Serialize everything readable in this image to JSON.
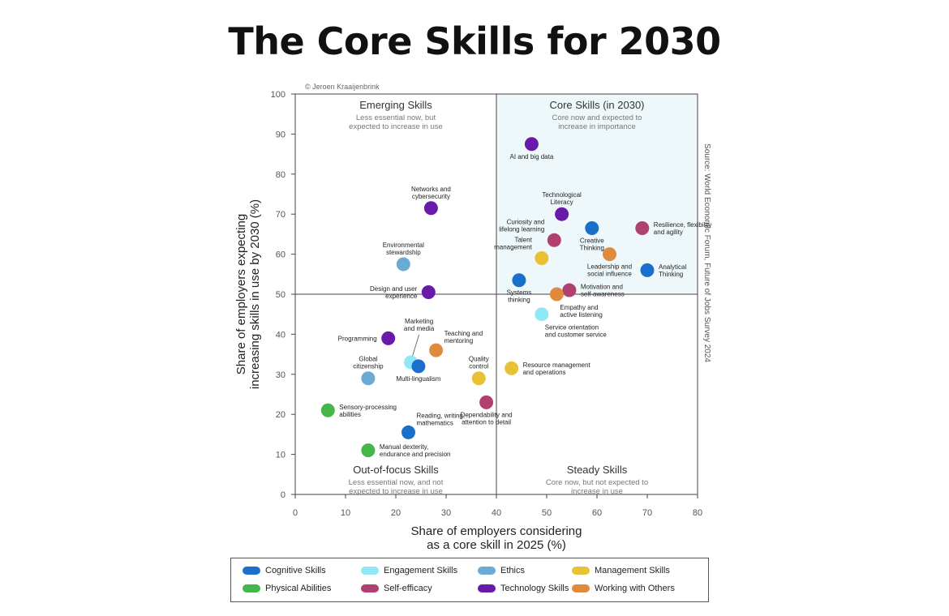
{
  "title": "The Core Skills for 2030",
  "credit": "© Jeroen Kraaijenbrink",
  "source": "Source: World Economic Forum, Future of Jobs Survey 2024",
  "chart_data": {
    "type": "scatter",
    "xlabel": [
      "Share of employers considering",
      "as a core skill in 2025 (%)"
    ],
    "ylabel": [
      "Share of employers expecting",
      "increasing skills in use by 2030 (%)"
    ],
    "xlim": [
      0,
      80
    ],
    "ylim": [
      0,
      100
    ],
    "xticks": [
      "0",
      "10",
      "20",
      "30",
      "40",
      "50",
      "60",
      "70",
      "80"
    ],
    "yticks": [
      "0",
      "10",
      "20",
      "30",
      "40",
      "50",
      "60",
      "70",
      "80",
      "90",
      "100"
    ],
    "divider": {
      "x": 40,
      "y": 50
    },
    "quadrants": [
      {
        "title": "Emerging Skills",
        "subtitle": [
          "Less essential now, but",
          "expected to increase in use"
        ]
      },
      {
        "title": "Core Skills (in 2030)",
        "subtitle": [
          "Core now and expected to",
          "increase in importance"
        ]
      },
      {
        "title": "Out-of-focus Skills",
        "subtitle": [
          "Less essential now, and not",
          "expected to increase in use"
        ]
      },
      {
        "title": "Steady Skills",
        "subtitle": [
          "Core now, but not expected to",
          "increase in use"
        ]
      }
    ],
    "categories": [
      {
        "name": "Cognitive Skills",
        "color": "#1a6fcc"
      },
      {
        "name": "Engagement Skills",
        "color": "#8fe8f5"
      },
      {
        "name": "Ethics",
        "color": "#6aaad4"
      },
      {
        "name": "Management Skills",
        "color": "#e8c234"
      },
      {
        "name": "Physical Abilities",
        "color": "#45b649"
      },
      {
        "name": "Self-efficacy",
        "color": "#b04070"
      },
      {
        "name": "Technology Skills",
        "color": "#6a1aa8"
      },
      {
        "name": "Working with Others",
        "color": "#e08a3c"
      }
    ],
    "points": [
      {
        "label": [
          "AI and big data"
        ],
        "category": "Technology Skills",
        "x": 47,
        "y": 87.5,
        "pos": "below"
      },
      {
        "label": [
          "Networks and",
          "cybersecurity"
        ],
        "category": "Technology Skills",
        "x": 27,
        "y": 71.5,
        "pos": "above"
      },
      {
        "label": [
          "Technological",
          "Literacy"
        ],
        "category": "Technology Skills",
        "x": 53,
        "y": 70,
        "pos": "above"
      },
      {
        "label": [
          "Curiosity and",
          "lifelong learning"
        ],
        "category": "Self-efficacy",
        "x": 51.5,
        "y": 63.5,
        "pos": "upleft"
      },
      {
        "label": [
          "Creative",
          "Thinking"
        ],
        "category": "Cognitive Skills",
        "x": 59,
        "y": 66.5,
        "pos": "below"
      },
      {
        "label": [
          "Resilience, flexibility",
          "and agility"
        ],
        "category": "Self-efficacy",
        "x": 69,
        "y": 66.5,
        "pos": "right"
      },
      {
        "label": [
          "Environmental",
          "stewardship"
        ],
        "category": "Ethics",
        "x": 21.5,
        "y": 57.5,
        "pos": "above"
      },
      {
        "label": [
          "Talent",
          "management"
        ],
        "category": "Management Skills",
        "x": 49,
        "y": 59,
        "pos": "upleft"
      },
      {
        "label": [
          "Leadership and",
          "social influence"
        ],
        "category": "Working with Others",
        "x": 62.5,
        "y": 60,
        "pos": "below"
      },
      {
        "label": [
          "Analytical",
          "Thinking"
        ],
        "category": "Cognitive Skills",
        "x": 70,
        "y": 56,
        "pos": "right"
      },
      {
        "label": [
          "Design and user",
          "experience"
        ],
        "category": "Technology Skills",
        "x": 26.5,
        "y": 50.5,
        "pos": "left"
      },
      {
        "label": [
          "Systems",
          "thinking"
        ],
        "category": "Cognitive Skills",
        "x": 44.5,
        "y": 53.5,
        "pos": "below"
      },
      {
        "label": [
          "Motivation and",
          "self-awareness"
        ],
        "category": "Self-efficacy",
        "x": 54.5,
        "y": 51,
        "pos": "right"
      },
      {
        "label": [
          "Empathy and",
          "active listening"
        ],
        "category": "Working with Others",
        "x": 52,
        "y": 50,
        "pos": "belowright"
      },
      {
        "label": [
          "Service orientation",
          "and customer service"
        ],
        "category": "Engagement Skills",
        "x": 49,
        "y": 45,
        "pos": "belowright"
      },
      {
        "label": [
          "Marketing",
          "and media"
        ],
        "category": "Engagement Skills",
        "x": 23,
        "y": 33,
        "pos": "abovefar"
      },
      {
        "label": [
          "Programming"
        ],
        "category": "Technology Skills",
        "x": 18.5,
        "y": 39,
        "pos": "left"
      },
      {
        "label": [
          "Teaching and",
          "mentoring"
        ],
        "category": "Working with Others",
        "x": 28,
        "y": 36,
        "pos": "aboveright"
      },
      {
        "label": [
          "Multi-lingualism"
        ],
        "category": "Cognitive Skills",
        "x": 24.5,
        "y": 32,
        "pos": "below"
      },
      {
        "label": [
          "Global",
          "citizenship"
        ],
        "category": "Ethics",
        "x": 14.5,
        "y": 29,
        "pos": "above"
      },
      {
        "label": [
          "Quality",
          "control"
        ],
        "category": "Management Skills",
        "x": 36.5,
        "y": 29,
        "pos": "above"
      },
      {
        "label": [
          "Resource management",
          "and operations"
        ],
        "category": "Management Skills",
        "x": 43,
        "y": 31.5,
        "pos": "right"
      },
      {
        "label": [
          "Sensory-processing",
          "abilities"
        ],
        "category": "Physical Abilities",
        "x": 6.5,
        "y": 21,
        "pos": "right"
      },
      {
        "label": [
          "Dependability and",
          "attention to detail"
        ],
        "category": "Self-efficacy",
        "x": 38,
        "y": 23,
        "pos": "below"
      },
      {
        "label": [
          "Reading, writing,",
          "mathematics"
        ],
        "category": "Cognitive Skills",
        "x": 22.5,
        "y": 15.5,
        "pos": "aboveright"
      },
      {
        "label": [
          "Manual dexterity,",
          "endurance and precision"
        ],
        "category": "Physical Abilities",
        "x": 14.5,
        "y": 11,
        "pos": "right"
      }
    ]
  }
}
